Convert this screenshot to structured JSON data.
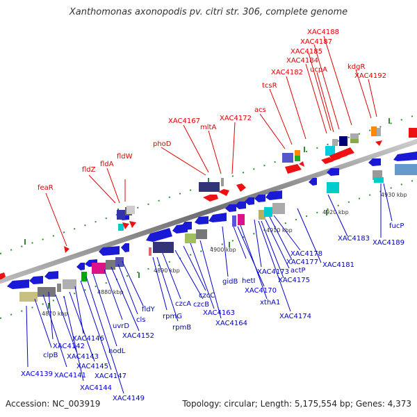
{
  "header": {
    "title": "Xanthomonas axonopodis pv. citri str. 306, complete genome"
  },
  "footer": {
    "accession": "Accession: NC_003919",
    "summary": "Topology: circular; Length: 5,175,554 bp; Genes: 4,373"
  },
  "kbp_labels": [
    "4870 kbp",
    "4880 kbp",
    "4890 kbp",
    "4900 kbp",
    "4910 kbp",
    "4920 kbp",
    "4930 kbp"
  ],
  "forward_genes": [
    "feaR",
    "fldZ",
    "fldA",
    "fldW",
    "phoD",
    "XAC4167",
    "mltA",
    "XAC4172",
    "acs",
    "tcsR",
    "XAC4182",
    "XAC4184",
    "XAC4185",
    "XAC4187",
    "XAC4188",
    "ucpA",
    "kdgR",
    "XAC4192"
  ],
  "reverse_genes": [
    "XAC4139",
    "clpB",
    "XAC4141",
    "XAC4142",
    "XAC4143",
    "XAC4144",
    "XAC4145",
    "XAC4146",
    "XAC4147",
    "XAC4149",
    "nodL",
    "uvrD",
    "XAC4152",
    "cls",
    "fldY",
    "rpmG",
    "rpmB",
    "czcA",
    "czcB",
    "czcC",
    "XAC4163",
    "XAC4164",
    "gidB",
    "hetI",
    "XAC4170",
    "xthA1",
    "XAC4173",
    "XAC4174",
    "XAC4175",
    "actP",
    "XAC4177",
    "XAC4178",
    "XAC4181",
    "XAC4183",
    "XAC4189",
    "fucP"
  ],
  "colors": {
    "forward": "#dd0000",
    "reverse": "#0000cc",
    "axis": "#888888",
    "tick": "#2e8b2e"
  }
}
